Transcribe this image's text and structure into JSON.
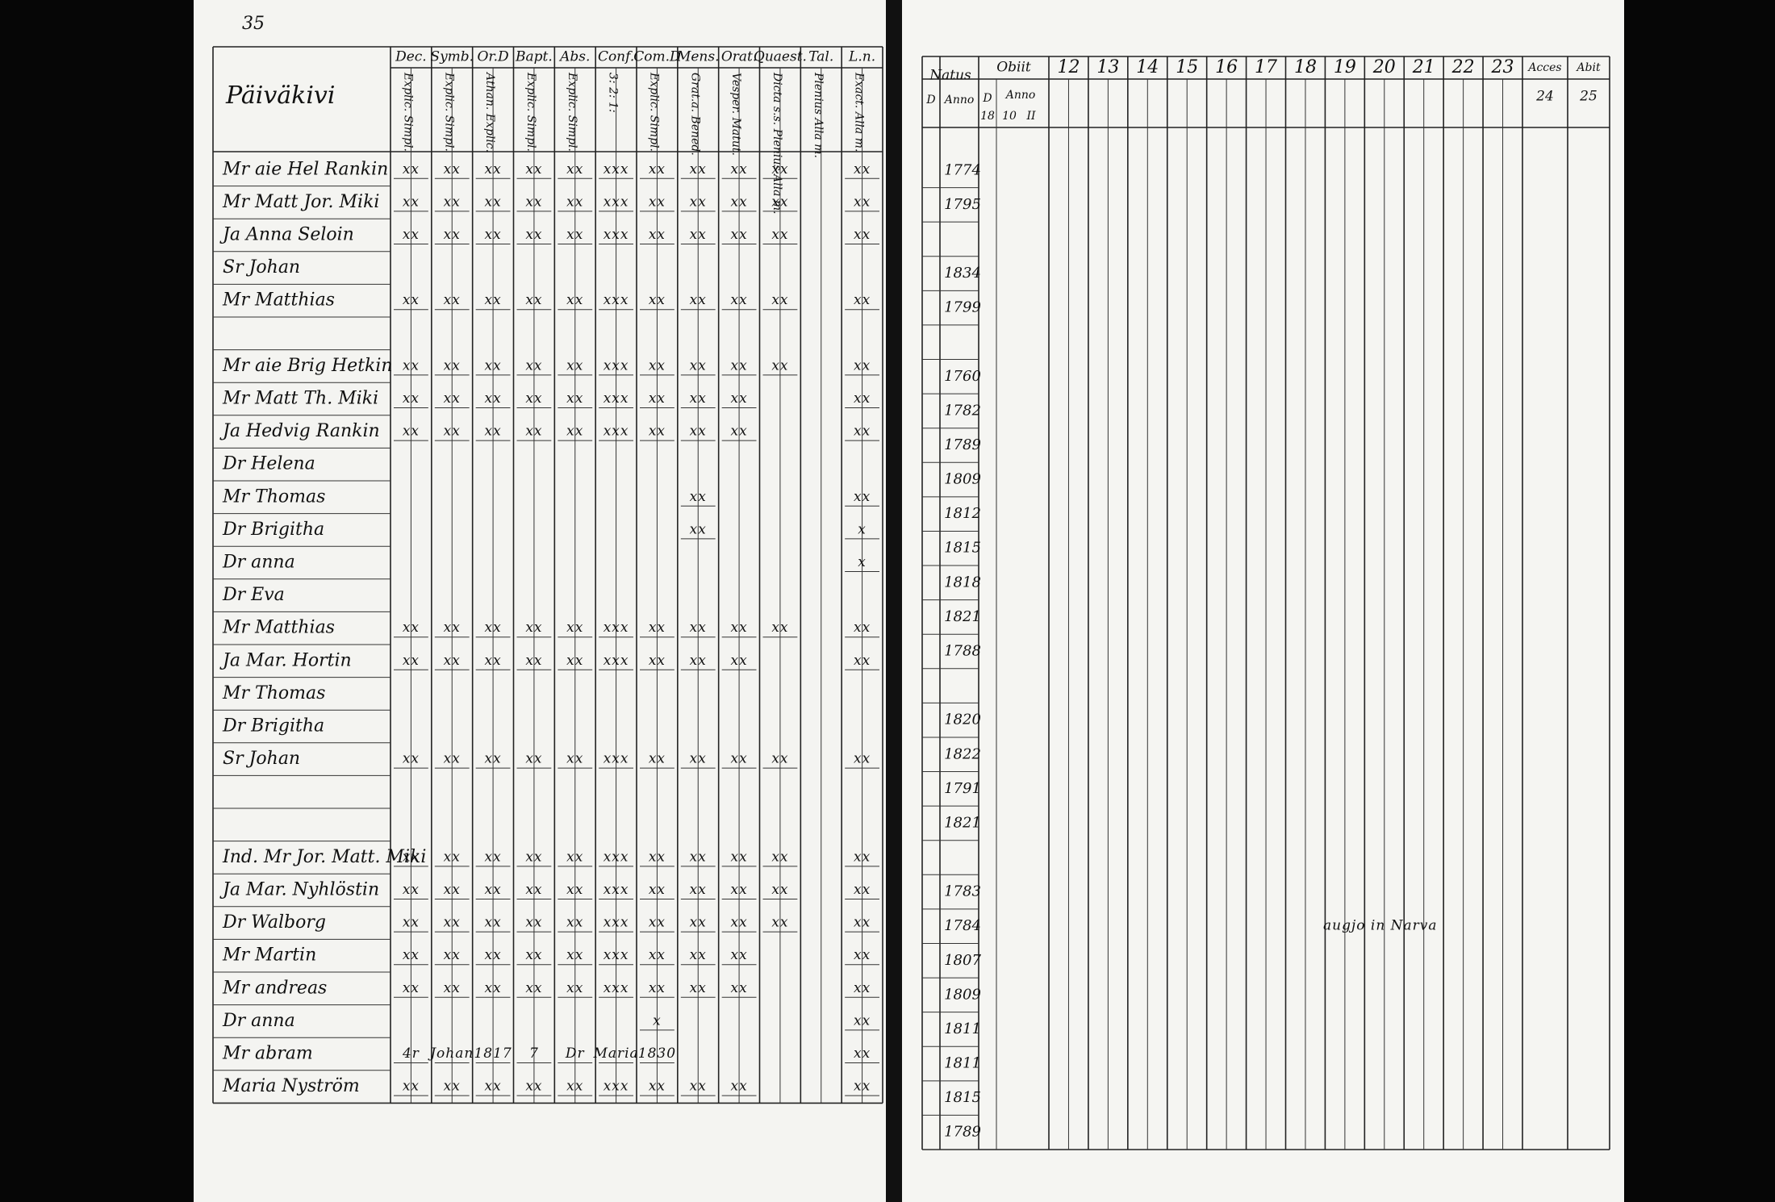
{
  "page_number": "35",
  "left": {
    "title": "Päiväkivi",
    "columns": [
      {
        "top": "Dec.",
        "sub": "Explic. Simpl."
      },
      {
        "top": "Symb.",
        "sub": "Explic. Simpl."
      },
      {
        "top": "Or.D",
        "sub": "Athan. Explic."
      },
      {
        "top": "Bapt.",
        "sub": "Explic. Simpl."
      },
      {
        "top": "Abs.",
        "sub": "Explic. Simpl."
      },
      {
        "top": "Conf.",
        "sub": "3: 2: 1:"
      },
      {
        "top": "Com.D",
        "sub": "Explic. Simpl."
      },
      {
        "top": "Mens.",
        "sub": "Grat.a. Bened."
      },
      {
        "top": "Orat.",
        "sub": "Vesper. Matut."
      },
      {
        "top": "Quaest.",
        "sub": "Dicta s.s. Plenius Alla m."
      },
      {
        "top": "Tal.",
        "sub": "Plenius Alla m."
      },
      {
        "top": "L.n.",
        "sub": "Exact. Alla m."
      }
    ],
    "rows": [
      {
        "name": "Mr aie Hel Rankin",
        "marks": [
          "xx",
          "xx",
          "xx",
          "xx",
          "xx",
          "xxx",
          "xx",
          "xx",
          "xx",
          "xx",
          null,
          "xx"
        ]
      },
      {
        "name": "Mr Matt Jor. Miki",
        "marks": [
          "xx",
          "xx",
          "xx",
          "xx",
          "xx",
          "xxx",
          "xx",
          "xx",
          "xx",
          "xx",
          null,
          "xx"
        ]
      },
      {
        "name": "Ja Anna Seloin",
        "marks": [
          "xx",
          "xx",
          "xx",
          "xx",
          "xx",
          "xxx",
          "xx",
          "xx",
          "xx",
          "xx",
          null,
          "xx"
        ]
      },
      {
        "name": "Sr Johan",
        "marks": null
      },
      {
        "name": "Mr Matthias",
        "marks": [
          "xx",
          "xx",
          "xx",
          "xx",
          "xx",
          "xxx",
          "xx",
          "xx",
          "xx",
          "xx",
          null,
          "xx"
        ]
      },
      {
        "name": null,
        "marks": null
      },
      {
        "name": "Mr aie Brig Hetkin",
        "marks": [
          "xx",
          "xx",
          "xx",
          "xx",
          "xx",
          "xxx",
          "xx",
          "xx",
          "xx",
          "xx",
          null,
          "xx"
        ]
      },
      {
        "name": "Mr Matt Th. Miki",
        "marks": [
          "xx",
          "xx",
          "xx",
          "xx",
          "xx",
          "xxx",
          "xx",
          "xx",
          "xx",
          null,
          null,
          "xx"
        ]
      },
      {
        "name": "Ja Hedvig Rankin",
        "marks": [
          "xx",
          "xx",
          "xx",
          "xx",
          "xx",
          "xxx",
          "xx",
          "xx",
          "xx",
          null,
          null,
          "xx"
        ]
      },
      {
        "name": "Dr Helena",
        "marks": null
      },
      {
        "name": "Mr Thomas",
        "marks": [
          null,
          null,
          null,
          null,
          null,
          null,
          null,
          "xx",
          null,
          null,
          null,
          "xx"
        ]
      },
      {
        "name": "Dr Brigitha",
        "marks": [
          null,
          null,
          null,
          null,
          null,
          null,
          null,
          "xx",
          null,
          null,
          null,
          "x"
        ]
      },
      {
        "name": "Dr anna",
        "marks": [
          null,
          null,
          null,
          null,
          null,
          null,
          null,
          null,
          null,
          null,
          null,
          "x"
        ]
      },
      {
        "name": "Dr Eva",
        "marks": null
      },
      {
        "name": "Mr Matthias",
        "marks": [
          "xx",
          "xx",
          "xx",
          "xx",
          "xx",
          "xxx",
          "xx",
          "xx",
          "xx",
          "xx",
          null,
          "xx"
        ]
      },
      {
        "name": "Ja Mar. Hortin",
        "marks": [
          "xx",
          "xx",
          "xx",
          "xx",
          "xx",
          "xxx",
          "xx",
          "xx",
          "xx",
          null,
          null,
          "xx"
        ]
      },
      {
        "name": "Mr Thomas",
        "marks": null
      },
      {
        "name": "Dr Brigitha",
        "marks": null
      },
      {
        "name": "Sr Johan",
        "marks": [
          "xx",
          "xx",
          "xx",
          "xx",
          "xx",
          "xxx",
          "xx",
          "xx",
          "xx",
          "xx",
          null,
          "xx"
        ]
      },
      {
        "name": null,
        "marks": null
      },
      {
        "name": null,
        "marks": null
      },
      {
        "name": "Ind. Mr Jor. Matt. Miki",
        "marks": [
          "xx",
          "xx",
          "xx",
          "xx",
          "xx",
          "xxx",
          "xx",
          "xx",
          "xx",
          "xx",
          null,
          "xx"
        ]
      },
      {
        "name": "Ja Mar. Nyhlöstin",
        "marks": [
          "xx",
          "xx",
          "xx",
          "xx",
          "xx",
          "xxx",
          "xx",
          "xx",
          "xx",
          "xx",
          null,
          "xx"
        ]
      },
      {
        "name": "Dr Walborg",
        "marks": [
          "xx",
          "xx",
          "xx",
          "xx",
          "xx",
          "xxx",
          "xx",
          "xx",
          "xx",
          "xx",
          null,
          "xx"
        ]
      },
      {
        "name": "Mr Martin",
        "marks": [
          "xx",
          "xx",
          "xx",
          "xx",
          "xx",
          "xxx",
          "xx",
          "xx",
          "xx",
          null,
          null,
          "xx"
        ]
      },
      {
        "name": "Mr andreas",
        "marks": [
          "xx",
          "xx",
          "xx",
          "xx",
          "xx",
          "xxx",
          "xx",
          "xx",
          "xx",
          null,
          null,
          "xx"
        ]
      },
      {
        "name": "Dr anna",
        "marks": [
          null,
          null,
          null,
          null,
          null,
          null,
          "x",
          null,
          null,
          null,
          null,
          "xx"
        ]
      },
      {
        "name": "Mr abram",
        "marks": [
          "4r",
          "Johan",
          "1817",
          "7",
          "Dr",
          "Maria",
          "1830",
          null,
          null,
          null,
          null,
          "xx"
        ]
      },
      {
        "name": "Maria Nyström",
        "marks": [
          "xx",
          "xx",
          "xx",
          "xx",
          "xx",
          "xxx",
          "xx",
          "xx",
          "xx",
          null,
          null,
          "xx"
        ]
      }
    ]
  },
  "right": {
    "natus": "Natus",
    "natus_sub": [
      "D",
      "Anno"
    ],
    "obiit": "Obiit",
    "obiit_sub": [
      "D",
      "Anno"
    ],
    "obiit_years": [
      "18",
      "10",
      "II"
    ],
    "year_columns": [
      "12",
      "13",
      "14",
      "15",
      "16",
      "17",
      "18",
      "19",
      "20",
      "21",
      "22",
      "23"
    ],
    "acces": "Acces",
    "abit": "Abit",
    "acces_no": "24",
    "abit_no": "25",
    "years": [
      "1774",
      "1795",
      null,
      "1834",
      "1799",
      null,
      "1760",
      "1782",
      "1789",
      "1809",
      "1812",
      "1815",
      "1818",
      "1821",
      "1788",
      null,
      "1820",
      "1822",
      "1791",
      "1821",
      null,
      "1783",
      "1784",
      "1807",
      "1809",
      "1811",
      "1811",
      "1815",
      "1789"
    ],
    "note": "augjo in Narva"
  }
}
